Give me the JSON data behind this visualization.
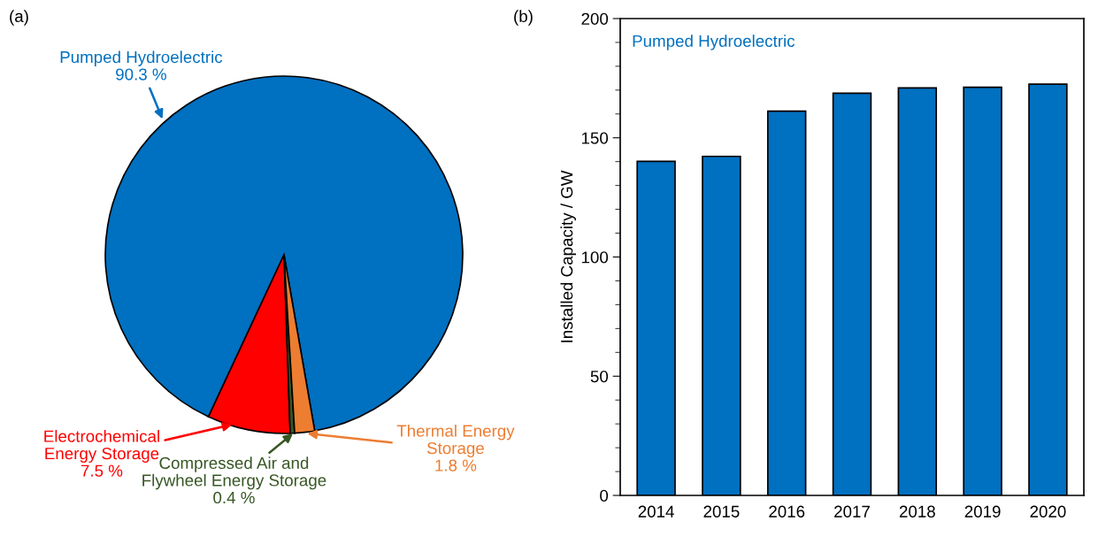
{
  "chart_data": [
    {
      "type": "pie",
      "title": "(a)",
      "categories": [
        "Pumped Hydroelectric",
        "Electrochemical\nEnergy Storage",
        "Compressed Air and\nFlywheel Energy Storage",
        "Thermal Energy\nStorage"
      ],
      "values": [
        90.3,
        7.5,
        0.4,
        1.8
      ],
      "colors": [
        "#0070c0",
        "#ff0000",
        "#375623",
        "#ed7d31"
      ],
      "value_labels": [
        "90.3 %",
        "7.5 %",
        "0.4 %",
        "1.8 %"
      ]
    },
    {
      "type": "bar",
      "title": "(b)",
      "ylabel": "Installed Capacity / GW",
      "categories": [
        "2014",
        "2015",
        "2016",
        "2017",
        "2018",
        "2019",
        "2020"
      ],
      "series": [
        {
          "name": "Pumped Hydroelectric",
          "color": "#0070c0",
          "values": [
            140.1,
            142.2,
            161.2,
            168.7,
            170.9,
            171.2,
            172.5
          ]
        }
      ],
      "ylim": [
        0,
        200
      ],
      "yticks": [
        0,
        50,
        100,
        150,
        200
      ],
      "grid": false,
      "legend": false
    }
  ]
}
